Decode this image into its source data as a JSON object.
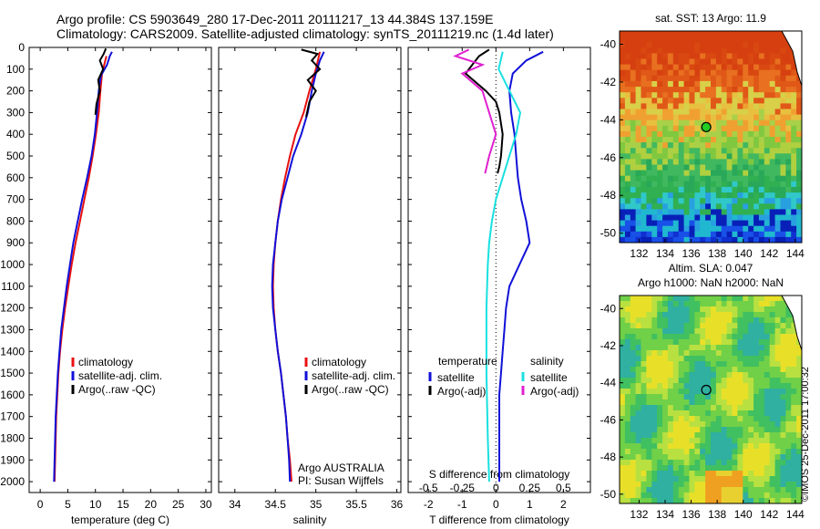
{
  "header": {
    "line1": "Argo profile: CS 5903649_280 17-Dec-2011 20111217_13 44.384S 137.159E",
    "line2": "Climatology: CARS2009. Satellite-adjusted climatology: synTS_20111219.nc (1.4d later)"
  },
  "colors": {
    "climatology": "#e81010",
    "satellite": "#1010d8",
    "argo": "#000000",
    "sat_diff_salinity": "#18e0e0",
    "argo_diff_salinity": "#e020d0"
  },
  "legend_profiles": {
    "climatology": "climatology",
    "satellite": "satellite-adj. clim.",
    "argo": "Argo(..raw -QC)"
  },
  "legend_diff": {
    "temperature_title": "temperature",
    "salinity_title": "salinity",
    "satellite": "satellite",
    "argo": "Argo(-adj)"
  },
  "depth_ticks": [
    "0",
    "100",
    "200",
    "300",
    "400",
    "500",
    "600",
    "700",
    "800",
    "900",
    "1000",
    "1100",
    "1200",
    "1300",
    "1400",
    "1500",
    "1600",
    "1700",
    "1800",
    "1900",
    "2000"
  ],
  "credits": {
    "line1": "Argo AUSTRALIA",
    "line2": "PI: Susan Wijffels"
  },
  "watermark": "©IMOS 25-Dec-2011 17:00:32",
  "map_sst": {
    "title": "sat. SST: 13 Argo: 11.9",
    "lat_ticks": [
      "-40",
      "-42",
      "-44",
      "-46",
      "-48",
      "-50"
    ],
    "lon_ticks": [
      "132",
      "134",
      "136",
      "138",
      "140",
      "142",
      "144"
    ],
    "float_marker": {
      "lon": 137.159,
      "lat": -44.384
    }
  },
  "map_sla": {
    "title1": "Altim. SLA: 0.047",
    "title2": "Argo h1000: NaN h2000: NaN",
    "lat_ticks": [
      "-40",
      "-42",
      "-44",
      "-46",
      "-48",
      "-50"
    ],
    "lon_ticks": [
      "132",
      "134",
      "136",
      "138",
      "140",
      "142",
      "144"
    ],
    "float_marker": {
      "lon": 137.159,
      "lat": -44.384
    }
  },
  "chart_data": [
    {
      "type": "line",
      "xlabel": "temperature (deg C)",
      "ylabel": "",
      "xticks": [
        "0",
        "5",
        "10",
        "15",
        "20",
        "25",
        "30"
      ],
      "xlim": [
        -2,
        31
      ],
      "ylim": [
        2050,
        0
      ],
      "series": [
        {
          "name": "climatology",
          "points": [
            [
              12.0,
              40
            ],
            [
              11.6,
              80
            ],
            [
              11.2,
              120
            ],
            [
              10.9,
              200
            ],
            [
              10.6,
              300
            ],
            [
              10.1,
              400
            ],
            [
              9.5,
              500
            ],
            [
              8.8,
              600
            ],
            [
              8.0,
              700
            ],
            [
              7.2,
              800
            ],
            [
              6.4,
              900
            ],
            [
              5.7,
              1000
            ],
            [
              5.1,
              1100
            ],
            [
              4.5,
              1200
            ],
            [
              4.0,
              1300
            ],
            [
              3.6,
              1400
            ],
            [
              3.3,
              1500
            ],
            [
              3.1,
              1600
            ],
            [
              2.9,
              1700
            ],
            [
              2.8,
              1800
            ],
            [
              2.7,
              1900
            ],
            [
              2.6,
              2000
            ]
          ]
        },
        {
          "name": "satellite-adj. clim.",
          "points": [
            [
              13.0,
              20
            ],
            [
              12.6,
              40
            ],
            [
              12.1,
              80
            ],
            [
              11.0,
              130
            ],
            [
              10.6,
              200
            ],
            [
              10.3,
              300
            ],
            [
              9.9,
              400
            ],
            [
              9.3,
              500
            ],
            [
              8.5,
              600
            ],
            [
              7.6,
              700
            ],
            [
              6.8,
              800
            ],
            [
              6.0,
              900
            ],
            [
              5.4,
              1000
            ],
            [
              4.8,
              1100
            ],
            [
              4.3,
              1200
            ],
            [
              3.8,
              1300
            ],
            [
              3.5,
              1400
            ],
            [
              3.2,
              1500
            ],
            [
              3.0,
              1600
            ],
            [
              2.8,
              1700
            ],
            [
              2.7,
              1800
            ],
            [
              2.6,
              1900
            ],
            [
              2.5,
              2000
            ]
          ]
        },
        {
          "name": "Argo(..raw -QC)",
          "points": [
            [
              11.9,
              5
            ],
            [
              11.5,
              30
            ],
            [
              10.8,
              60
            ],
            [
              11.4,
              100
            ],
            [
              10.5,
              150
            ],
            [
              10.8,
              200
            ],
            [
              10.2,
              260
            ],
            [
              10.0,
              310
            ]
          ]
        }
      ]
    },
    {
      "type": "line",
      "xlabel": "salinity",
      "ylabel": "",
      "xticks": [
        "34",
        "34.5",
        "35",
        "35.5",
        "36"
      ],
      "xlim": [
        33.8,
        36.05
      ],
      "ylim": [
        2050,
        0
      ],
      "series": [
        {
          "name": "climatology",
          "points": [
            [
              35.05,
              20
            ],
            [
              35.0,
              100
            ],
            [
              34.92,
              200
            ],
            [
              34.85,
              300
            ],
            [
              34.75,
              400
            ],
            [
              34.68,
              500
            ],
            [
              34.62,
              600
            ],
            [
              34.57,
              700
            ],
            [
              34.53,
              800
            ],
            [
              34.5,
              900
            ],
            [
              34.48,
              1000
            ],
            [
              34.47,
              1100
            ],
            [
              34.48,
              1200
            ],
            [
              34.5,
              1300
            ],
            [
              34.53,
              1400
            ],
            [
              34.57,
              1500
            ],
            [
              34.6,
              1600
            ],
            [
              34.63,
              1700
            ],
            [
              34.65,
              1800
            ],
            [
              34.68,
              1900
            ],
            [
              34.7,
              2000
            ]
          ]
        },
        {
          "name": "satellite-adj. clim.",
          "points": [
            [
              35.1,
              20
            ],
            [
              35.05,
              60
            ],
            [
              35.0,
              120
            ],
            [
              34.95,
              200
            ],
            [
              34.9,
              300
            ],
            [
              34.82,
              400
            ],
            [
              34.72,
              500
            ],
            [
              34.65,
              600
            ],
            [
              34.58,
              700
            ],
            [
              34.53,
              800
            ],
            [
              34.5,
              900
            ],
            [
              34.47,
              1000
            ],
            [
              34.46,
              1100
            ],
            [
              34.47,
              1200
            ],
            [
              34.5,
              1300
            ],
            [
              34.53,
              1400
            ],
            [
              34.57,
              1500
            ],
            [
              34.6,
              1600
            ],
            [
              34.63,
              1700
            ],
            [
              34.65,
              1800
            ],
            [
              34.67,
              1900
            ],
            [
              34.68,
              2000
            ]
          ]
        },
        {
          "name": "Argo(..raw -QC)",
          "points": [
            [
              34.82,
              10
            ],
            [
              35.02,
              30
            ],
            [
              34.95,
              60
            ],
            [
              35.05,
              100
            ],
            [
              34.9,
              150
            ],
            [
              35.0,
              200
            ],
            [
              34.92,
              250
            ],
            [
              34.88,
              320
            ]
          ]
        }
      ]
    },
    {
      "type": "line",
      "xlabel": "T difference from climatology",
      "xlabel_top": "S difference from climatology",
      "xticks_top": [
        "-0.5",
        "-0.25",
        "0",
        "0.25",
        "0.5"
      ],
      "xticks": [
        "-2",
        "-1",
        "0",
        "1",
        "2"
      ],
      "xlim": [
        -2.6,
        2.8
      ],
      "ylim": [
        2050,
        0
      ],
      "series": [
        {
          "name": "temperature satellite",
          "points": [
            [
              1.4,
              20
            ],
            [
              0.9,
              60
            ],
            [
              0.5,
              120
            ],
            [
              0.4,
              200
            ],
            [
              0.45,
              300
            ],
            [
              0.55,
              400
            ],
            [
              0.6,
              500
            ],
            [
              0.65,
              600
            ],
            [
              0.75,
              700
            ],
            [
              0.9,
              800
            ],
            [
              1.0,
              900
            ],
            [
              0.7,
              1000
            ],
            [
              0.4,
              1100
            ],
            [
              0.3,
              1200
            ],
            [
              0.25,
              1300
            ],
            [
              0.2,
              1400
            ],
            [
              0.15,
              1500
            ],
            [
              0.1,
              1600
            ],
            [
              0.1,
              1800
            ],
            [
              0.1,
              2000
            ]
          ]
        },
        {
          "name": "temperature Argo(-adj)",
          "points": [
            [
              -0.2,
              10
            ],
            [
              -0.5,
              40
            ],
            [
              -0.7,
              80
            ],
            [
              -0.9,
              120
            ],
            [
              -0.6,
              160
            ],
            [
              -0.3,
              200
            ],
            [
              0.0,
              250
            ],
            [
              0.1,
              300
            ],
            [
              0.2,
              400
            ],
            [
              0.15,
              500
            ],
            [
              0.1,
              550
            ],
            [
              0.05,
              580
            ]
          ]
        },
        {
          "name": "salinity satellite",
          "points": [
            [
              0.05,
              20
            ],
            [
              0.02,
              100
            ],
            [
              0.1,
              200
            ],
            [
              0.18,
              300
            ],
            [
              0.15,
              400
            ],
            [
              0.1,
              500
            ],
            [
              0.05,
              600
            ],
            [
              0.0,
              700
            ],
            [
              -0.03,
              800
            ],
            [
              -0.05,
              900
            ],
            [
              -0.06,
              1000
            ],
            [
              -0.07,
              1200
            ],
            [
              -0.07,
              1500
            ],
            [
              -0.06,
              1800
            ],
            [
              -0.05,
              2000
            ]
          ]
        },
        {
          "name": "salinity Argo(-adj)",
          "points": [
            [
              -0.2,
              10
            ],
            [
              -0.3,
              40
            ],
            [
              -0.1,
              80
            ],
            [
              -0.25,
              120
            ],
            [
              -0.1,
              200
            ],
            [
              -0.05,
              300
            ],
            [
              0.0,
              400
            ],
            [
              -0.05,
              500
            ],
            [
              -0.08,
              580
            ]
          ]
        }
      ]
    }
  ]
}
